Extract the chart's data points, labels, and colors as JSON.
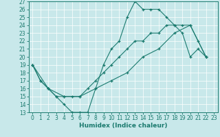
{
  "xlabel": "Humidex (Indice chaleur)",
  "xlim_min": -0.5,
  "xlim_max": 23.5,
  "ylim_min": 13,
  "ylim_max": 27,
  "xticks": [
    0,
    1,
    2,
    3,
    4,
    5,
    6,
    7,
    8,
    9,
    10,
    11,
    12,
    13,
    14,
    15,
    16,
    17,
    18,
    19,
    20,
    21,
    22,
    23
  ],
  "yticks": [
    13,
    14,
    15,
    16,
    17,
    18,
    19,
    20,
    21,
    22,
    23,
    24,
    25,
    26,
    27
  ],
  "bg_color": "#c8e8ea",
  "line_color": "#1a7a6e",
  "grid_color": "#ffffff",
  "line1_x": [
    0,
    1,
    2,
    3,
    4,
    5,
    6,
    7,
    8,
    9,
    10,
    11,
    12,
    13,
    14,
    15,
    16,
    17,
    18,
    19,
    20,
    21,
    22
  ],
  "line1_y": [
    19,
    17,
    16,
    15,
    14,
    13,
    13,
    13,
    16,
    19,
    21,
    22,
    25,
    27,
    26,
    26,
    26,
    25,
    24,
    23,
    20,
    21,
    20
  ],
  "line2_x": [
    0,
    2,
    4,
    6,
    8,
    10,
    12,
    14,
    16,
    18,
    20,
    22
  ],
  "line2_y": [
    19,
    16,
    15,
    15,
    16,
    17,
    18,
    20,
    21,
    23,
    24,
    20
  ],
  "line3_x": [
    0,
    1,
    2,
    3,
    4,
    5,
    6,
    7,
    8,
    9,
    10,
    11,
    12,
    13,
    14,
    15,
    16,
    17,
    18,
    19,
    20,
    21,
    22
  ],
  "line3_y": [
    19,
    17,
    16,
    15,
    15,
    15,
    15,
    16,
    17,
    18,
    19,
    20,
    21,
    22,
    22,
    23,
    23,
    24,
    24,
    24,
    24,
    22,
    20
  ],
  "tick_fontsize": 5.5,
  "xlabel_fontsize": 6.5
}
